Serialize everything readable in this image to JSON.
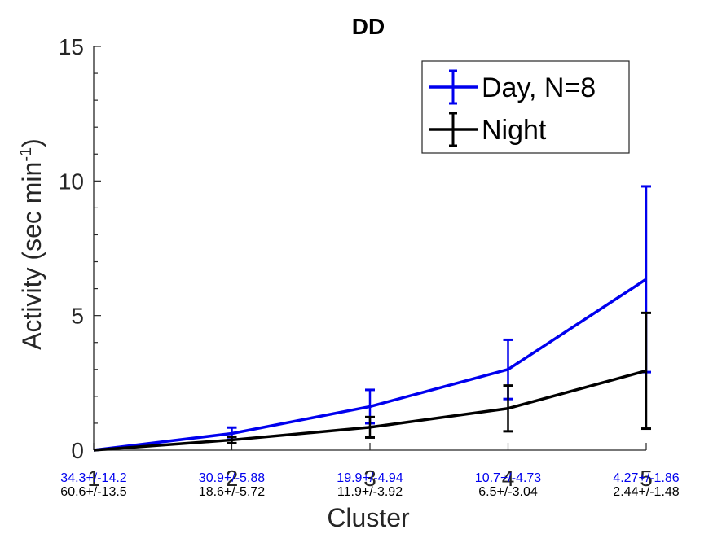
{
  "chart_data": {
    "type": "line",
    "title": "DD",
    "xlabel": "Cluster",
    "ylabel": "Activity (sec min",
    "ylabel_sup": "-1",
    "ylabel_close": ")",
    "x": [
      1,
      2,
      3,
      4,
      5
    ],
    "x_ticks": [
      "1",
      "2",
      "3",
      "4",
      "5"
    ],
    "y_ticks": [
      "0",
      "5",
      "10",
      "15"
    ],
    "xlim": [
      1,
      5
    ],
    "ylim": [
      0,
      15
    ],
    "grid": false,
    "legend_position": "top-right",
    "series": [
      {
        "name": "Day, N=8",
        "color": "#0000ee",
        "values": [
          0.0,
          0.62,
          1.62,
          3.0,
          6.35
        ],
        "errors": [
          0.0,
          0.22,
          0.62,
          1.1,
          3.45
        ],
        "annotations": [
          "34.3+/-14.2",
          "30.9+/-5.88",
          "19.9+/-4.94",
          "10.7+/-4.73",
          "4.27+/-1.86"
        ]
      },
      {
        "name": "Night",
        "color": "#000000",
        "values": [
          0.0,
          0.38,
          0.85,
          1.55,
          2.95
        ],
        "errors": [
          0.0,
          0.12,
          0.38,
          0.85,
          2.15
        ],
        "annotations": [
          "60.6+/-13.5",
          "18.6+/-5.72",
          "11.9+/-3.92",
          "6.5+/-3.04",
          "2.44+/-1.48"
        ]
      }
    ]
  }
}
